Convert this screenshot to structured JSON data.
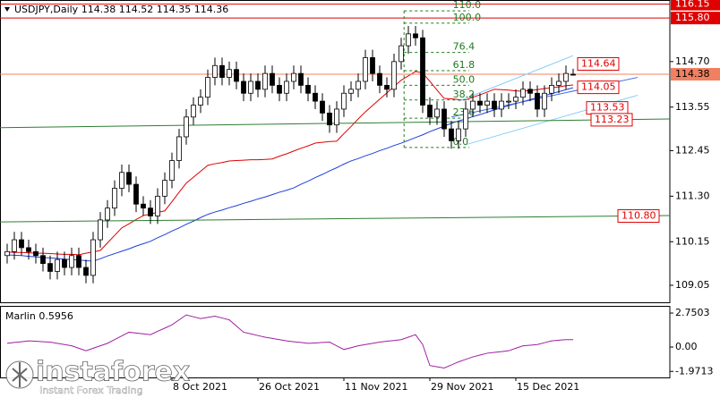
{
  "chart_data": [
    {
      "type": "candlestick",
      "title": "USDJPY,Daily",
      "header_values": [
        114.38,
        114.52,
        114.35,
        114.36
      ],
      "categories": [
        null,
        null,
        null,
        null,
        null,
        null,
        null,
        null,
        null,
        null,
        null,
        null,
        null,
        null,
        null,
        null,
        null,
        null,
        null,
        null,
        null,
        null,
        null,
        "8 Oct 2021",
        null,
        null,
        null,
        null,
        null,
        null,
        null,
        null,
        null,
        null,
        null,
        "26 Oct 2021",
        null,
        null,
        null,
        null,
        null,
        null,
        null,
        null,
        null,
        null,
        null,
        "11 Nov 2021",
        null,
        null,
        null,
        null,
        null,
        null,
        null,
        null,
        null,
        null,
        null,
        "29 Nov 2021",
        null,
        null,
        null,
        null,
        null,
        null,
        null,
        null,
        null,
        null,
        null,
        "15 Dec 2021",
        null,
        null,
        null,
        null,
        null,
        null,
        null,
        null
      ],
      "open": [
        109.8,
        109.9,
        110.2,
        110.0,
        109.9,
        109.8,
        109.6,
        109.4,
        109.7,
        109.5,
        109.8,
        109.5,
        109.3,
        110.2,
        110.7,
        111.0,
        111.5,
        111.9,
        111.6,
        111.1,
        111.0,
        110.8,
        111.3,
        111.7,
        112.2,
        112.8,
        113.3,
        113.6,
        113.8,
        114.3,
        114.6,
        114.3,
        114.5,
        114.2,
        113.9,
        114.2,
        114.0,
        114.4,
        114.1,
        113.9,
        114.2,
        114.4,
        114.1,
        113.9,
        113.7,
        113.4,
        113.1,
        113.5,
        113.9,
        114.0,
        114.2,
        114.8,
        114.4,
        114.1,
        114.0,
        114.7,
        115.1,
        115.4,
        115.3,
        113.6,
        113.3,
        113.5,
        113.0,
        112.7,
        113.0,
        113.5,
        113.7,
        113.6,
        113.7,
        113.5,
        113.7,
        113.7,
        113.8,
        114.0,
        113.9,
        113.5,
        113.9,
        114.1,
        114.2,
        114.38
      ],
      "high": [
        110.1,
        110.4,
        110.4,
        110.2,
        110.1,
        110.0,
        109.8,
        109.9,
        109.9,
        110.0,
        110.0,
        109.7,
        110.4,
        110.9,
        111.2,
        111.7,
        112.1,
        112.1,
        111.8,
        111.3,
        111.2,
        111.5,
        111.9,
        112.4,
        113.0,
        113.5,
        113.8,
        114.0,
        114.5,
        114.8,
        114.8,
        114.7,
        114.7,
        114.4,
        114.4,
        114.4,
        114.6,
        114.6,
        114.3,
        114.4,
        114.6,
        114.6,
        114.3,
        114.1,
        113.9,
        113.6,
        113.7,
        114.1,
        114.2,
        114.4,
        115.0,
        115.0,
        114.6,
        114.3,
        114.9,
        115.3,
        115.6,
        115.6,
        115.5,
        113.8,
        113.7,
        113.7,
        113.2,
        113.2,
        113.7,
        113.9,
        113.9,
        113.9,
        113.9,
        113.9,
        113.9,
        114.0,
        114.2,
        114.2,
        114.1,
        114.1,
        114.3,
        114.4,
        114.6,
        114.52
      ],
      "low": [
        109.6,
        109.7,
        109.8,
        109.7,
        109.6,
        109.4,
        109.2,
        109.2,
        109.3,
        109.3,
        109.3,
        109.1,
        109.1,
        110.0,
        110.5,
        110.8,
        111.3,
        111.4,
        110.9,
        110.8,
        110.6,
        110.6,
        111.1,
        111.5,
        112.0,
        112.6,
        113.1,
        113.4,
        113.6,
        114.1,
        114.1,
        114.1,
        114.0,
        113.7,
        113.7,
        113.8,
        113.8,
        113.9,
        113.7,
        113.7,
        114.0,
        113.9,
        113.7,
        113.5,
        113.2,
        112.9,
        112.9,
        113.3,
        113.7,
        113.8,
        114.0,
        114.2,
        113.9,
        113.8,
        113.8,
        114.5,
        114.9,
        115.1,
        113.4,
        113.1,
        113.1,
        112.8,
        112.5,
        112.5,
        112.8,
        113.3,
        113.4,
        113.4,
        113.3,
        113.3,
        113.5,
        113.5,
        113.6,
        113.7,
        113.3,
        113.3,
        113.7,
        113.9,
        114.0,
        114.35
      ],
      "close": [
        109.9,
        110.2,
        110.0,
        109.9,
        109.8,
        109.6,
        109.4,
        109.7,
        109.5,
        109.8,
        109.5,
        109.3,
        110.2,
        110.7,
        111.0,
        111.5,
        111.9,
        111.6,
        111.1,
        111.0,
        110.8,
        111.3,
        111.7,
        112.2,
        112.8,
        113.3,
        113.6,
        113.8,
        114.3,
        114.6,
        114.3,
        114.5,
        114.2,
        113.9,
        114.2,
        114.0,
        114.4,
        114.1,
        113.9,
        114.2,
        114.4,
        114.1,
        113.9,
        113.7,
        113.4,
        113.1,
        113.5,
        113.9,
        114.0,
        114.2,
        114.8,
        114.4,
        114.1,
        114.0,
        114.7,
        115.1,
        115.4,
        115.3,
        113.6,
        113.3,
        113.5,
        113.0,
        112.7,
        113.0,
        113.5,
        113.7,
        113.6,
        113.7,
        113.5,
        113.7,
        113.7,
        113.8,
        114.0,
        113.9,
        113.5,
        113.9,
        114.1,
        114.2,
        114.4,
        114.36
      ],
      "up_color": "#ffffff",
      "down_color": "#000000",
      "series": [
        {
          "color": "#e00000",
          "values": [
            109.89,
            109.88,
            109.88,
            109.87,
            109.86,
            109.86,
            109.85,
            109.84,
            109.83,
            109.83,
            109.82,
            109.86,
            109.89,
            109.93,
            110.12,
            110.31,
            110.5,
            110.6,
            110.71,
            110.81,
            110.85,
            110.89,
            110.93,
            111.16,
            111.4,
            111.63,
            111.78,
            111.93,
            112.08,
            112.12,
            112.15,
            112.19,
            112.2,
            112.21,
            112.22,
            112.22,
            112.23,
            112.24,
            112.31,
            112.37,
            112.44,
            112.51,
            112.57,
            112.64,
            112.66,
            112.68,
            112.69,
            112.88,
            113.06,
            113.25,
            113.43,
            113.59,
            113.75,
            113.91,
            114.07,
            114.23,
            114.34,
            114.45,
            114.41,
            114.2,
            113.98,
            113.77,
            113.76,
            113.74,
            113.73,
            113.8,
            113.86,
            113.93,
            114.0,
            113.99,
            113.98,
            113.96,
            113.95,
            113.97,
            113.99,
            114.02,
            114.04,
            114.06,
            114.09,
            114.11
          ]
        },
        {
          "color": "#1f3fd8",
          "values": [
            109.82,
            109.81,
            109.8,
            109.78,
            109.77,
            109.75,
            109.74,
            109.73,
            109.71,
            109.7,
            109.69,
            109.67,
            109.66,
            109.72,
            109.79,
            109.85,
            109.91,
            109.97,
            110.04,
            110.1,
            110.16,
            110.25,
            110.33,
            110.42,
            110.5,
            110.59,
            110.67,
            110.76,
            110.84,
            110.9,
            110.95,
            111.01,
            111.06,
            111.12,
            111.17,
            111.23,
            111.28,
            111.34,
            111.4,
            111.45,
            111.51,
            111.6,
            111.68,
            111.77,
            111.85,
            111.94,
            112.02,
            112.11,
            112.19,
            112.25,
            112.32,
            112.38,
            112.45,
            112.51,
            112.58,
            112.64,
            112.71,
            112.78,
            112.85,
            112.93,
            113.0,
            113.07,
            113.14,
            113.2,
            113.25,
            113.31,
            113.36,
            113.42,
            113.48,
            113.53,
            113.59,
            113.64,
            113.69,
            113.74,
            113.79,
            113.84,
            113.89,
            113.94,
            113.99,
            114.04
          ]
        }
      ],
      "ylim": [
        108.62,
        116.21
      ],
      "yticks": [
        {
          "value": 114.7,
          "label": "114.70"
        },
        113.55,
        112.45,
        {
          "value": 111.3,
          "label": "111.30"
        },
        110.15,
        109.05
      ],
      "levels": [
        {
          "value": 116.15,
          "color": "#e00000"
        },
        {
          "value": 115.8,
          "label": "115.80",
          "color": "#e00000"
        },
        {
          "value": 114.38,
          "color": "#f08060"
        }
      ],
      "lines": [
        {
          "color": "#87cefa",
          "from": [
            63,
            113.7
          ],
          "to": [
            79,
            114.85
          ],
          "value": 114.64
        },
        {
          "color": "#4169e1",
          "from": [
            62,
            113.3
          ],
          "to": [
            88,
            114.3
          ],
          "value": 114.05
        },
        {
          "color": "#87cefa",
          "from": [
            64,
            112.6
          ],
          "to": [
            88,
            113.85
          ],
          "value": 113.53
        },
        {
          "color": "#2e7d32",
          "from": [
            -1,
            113.03
          ],
          "to": [
            92.5,
            113.25
          ],
          "value": 113.23
        },
        {
          "color": "#2e7d32",
          "from": [
            -1,
            110.65
          ],
          "to": [
            92.5,
            110.81
          ],
          "value": 110.8,
          "label": "110.80"
        }
      ],
      "fib": {
        "color": "#1e7b1e",
        "levels": [
          {
            "value": 0,
            "label": "0.0"
          },
          23.6,
          38.2,
          {
            "value": 50,
            "label": "50.0"
          },
          61.8,
          76.4,
          {
            "value": 100,
            "label": "100.0"
          },
          {
            "value": 110,
            "label": "110.0"
          }
        ],
        "prices": [
          112.53,
          113.27,
          113.73,
          114.1,
          114.47,
          114.93,
          115.67,
          115.98
        ]
      }
    },
    {
      "type": "line",
      "title": "Marlin",
      "current": 0.5956,
      "color": "#a020a0",
      "values": [
        0.3,
        0.37,
        0.43,
        0.5,
        0.47,
        0.43,
        0.4,
        0.3,
        0.2,
        0.1,
        -0.1,
        -0.3,
        -0.1,
        0.1,
        0.3,
        0.6,
        0.9,
        1.2,
        1.13,
        1.07,
        1.0,
        1.27,
        1.53,
        1.8,
        2.2,
        2.6,
        2.45,
        2.3,
        2.4,
        2.5,
        2.35,
        2.2,
        1.7,
        1.2,
        1.07,
        0.93,
        0.8,
        0.7,
        0.6,
        0.5,
        0.43,
        0.37,
        0.3,
        0.33,
        0.37,
        0.4,
        0.1,
        -0.2,
        -0.05,
        0.1,
        0.2,
        0.3,
        0.4,
        0.47,
        0.53,
        0.6,
        0.8,
        1.0,
        0.2,
        -1.5,
        -1.6,
        -1.7,
        -1.45,
        -1.2,
        -1.0,
        -0.8,
        -0.65,
        -0.5,
        -0.43,
        -0.37,
        -0.3,
        -0.1,
        0.1,
        0.15,
        0.2,
        0.35,
        0.5,
        0.55,
        0.6,
        0.5956
      ],
      "ylim": [
        -2.46,
        3.26
      ],
      "yticks": [
        2.7503,
        {
          "value": 0,
          "label": "0.00"
        },
        -1.9713
      ]
    }
  ],
  "watermark": {
    "brand": "instaforex",
    "tagline": "Instant Forex Trading"
  }
}
